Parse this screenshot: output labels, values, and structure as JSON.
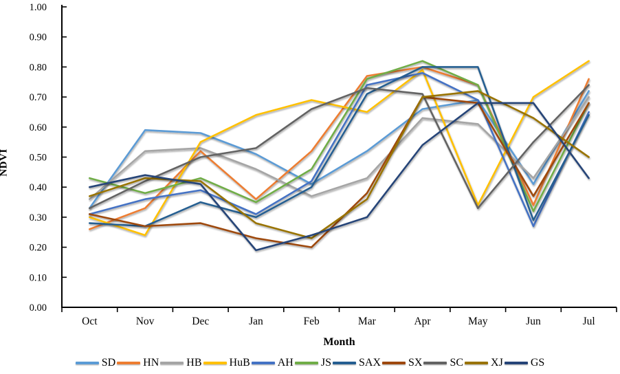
{
  "chart_data": {
    "type": "line",
    "title": "",
    "xlabel": "Month",
    "ylabel": "NDVI",
    "categories": [
      "Oct",
      "Nov",
      "Dec",
      "Jan",
      "Feb",
      "Mar",
      "Apr",
      "May",
      "Jun",
      "Jul"
    ],
    "ylim": [
      0.0,
      1.0
    ],
    "y_tick_step": 0.1,
    "y_ticks": [
      "0.00",
      "0.10",
      "0.20",
      "0.30",
      "0.40",
      "0.50",
      "0.60",
      "0.70",
      "0.80",
      "0.90",
      "1.00"
    ],
    "grid": false,
    "legend_position": "bottom",
    "axis_color": "#000000",
    "series": [
      {
        "name": "SD",
        "color": "#5B9BD5",
        "values": [
          0.33,
          0.59,
          0.58,
          0.51,
          0.41,
          0.52,
          0.66,
          0.69,
          0.41,
          0.72
        ]
      },
      {
        "name": "HN",
        "color": "#ED7D31",
        "values": [
          0.26,
          0.33,
          0.52,
          0.36,
          0.52,
          0.77,
          0.8,
          0.74,
          0.34,
          0.76
        ]
      },
      {
        "name": "HB",
        "color": "#A5A5A5",
        "values": [
          0.36,
          0.52,
          0.53,
          0.46,
          0.37,
          0.43,
          0.63,
          0.61,
          0.43,
          0.7
        ]
      },
      {
        "name": "HuB",
        "color": "#FFC000",
        "values": [
          0.3,
          0.24,
          0.55,
          0.64,
          0.69,
          0.65,
          0.79,
          0.34,
          0.7,
          0.82
        ]
      },
      {
        "name": "AH",
        "color": "#4472C4",
        "values": [
          0.31,
          0.36,
          0.39,
          0.31,
          0.42,
          0.74,
          0.78,
          0.69,
          0.27,
          0.65
        ]
      },
      {
        "name": "JS",
        "color": "#70AD47",
        "values": [
          0.43,
          0.38,
          0.43,
          0.35,
          0.46,
          0.76,
          0.82,
          0.74,
          0.32,
          0.68
        ]
      },
      {
        "name": "SAX",
        "color": "#255E91",
        "values": [
          0.28,
          0.27,
          0.35,
          0.3,
          0.4,
          0.71,
          0.8,
          0.8,
          0.29,
          0.64
        ]
      },
      {
        "name": "SX",
        "color": "#9E480E",
        "values": [
          0.31,
          0.27,
          0.28,
          0.23,
          0.2,
          0.38,
          0.7,
          0.68,
          0.37,
          0.68
        ]
      },
      {
        "name": "SC",
        "color": "#636363",
        "values": [
          0.33,
          0.42,
          0.5,
          0.53,
          0.66,
          0.73,
          0.71,
          0.33,
          0.55,
          0.74
        ]
      },
      {
        "name": "XJ",
        "color": "#997300",
        "values": [
          0.37,
          0.43,
          0.42,
          0.28,
          0.23,
          0.36,
          0.7,
          0.72,
          0.63,
          0.5
        ]
      },
      {
        "name": "GS",
        "color": "#264478",
        "values": [
          0.4,
          0.44,
          0.41,
          0.19,
          0.24,
          0.3,
          0.54,
          0.68,
          0.68,
          0.43
        ]
      }
    ]
  }
}
